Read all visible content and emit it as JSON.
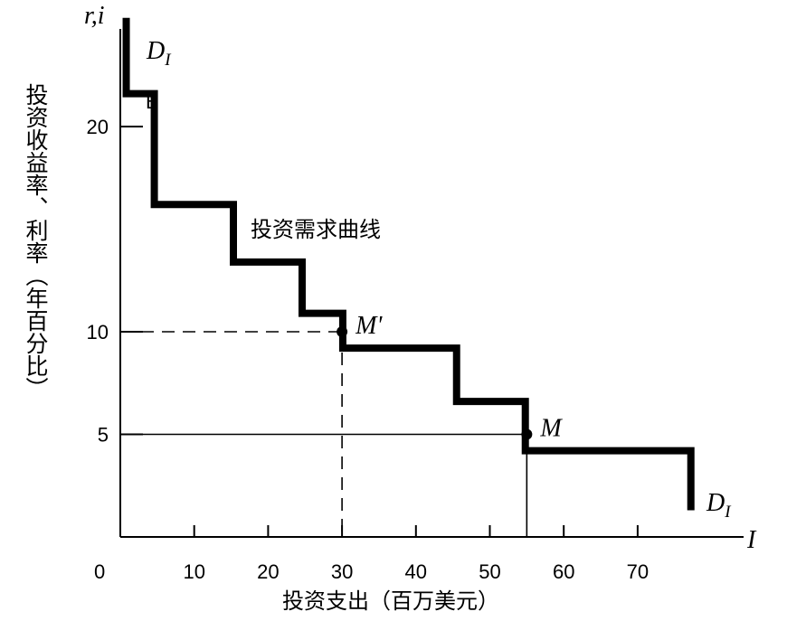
{
  "chart_data": {
    "type": "line",
    "title": "",
    "xlabel": "投资支出（百万美元）",
    "ylabel": "投资收益率、利率（年百分比）",
    "x_axis_symbol": "I",
    "y_axis_symbol": "r,i",
    "origin_label": "0",
    "xlim": [
      -2,
      90
    ],
    "ylim": [
      -0.5,
      26
    ],
    "x_ticks": [
      10,
      20,
      30,
      40,
      50,
      60,
      70
    ],
    "y_ticks": [
      5,
      10,
      20
    ],
    "series": [
      {
        "name": "",
        "label": "投资需求曲线",
        "step_points": [
          [
            0.8,
            25.3
          ],
          [
            0.8,
            21.6
          ],
          [
            4.6,
            21.6
          ],
          [
            4.6,
            16.2
          ],
          [
            15.3,
            16.2
          ],
          [
            15.3,
            13.4
          ],
          [
            24.6,
            13.4
          ],
          [
            24.6,
            10.9
          ],
          [
            30.1,
            10.9
          ],
          [
            30.1,
            9.2
          ],
          [
            45.5,
            9.2
          ],
          [
            45.5,
            6.6
          ],
          [
            54.8,
            6.6
          ],
          [
            54.8,
            4.2
          ],
          [
            77.2,
            4.2
          ],
          [
            77.2,
            1.3
          ]
        ]
      }
    ],
    "points": [
      {
        "label": "M'",
        "x": 30,
        "y": 10
      },
      {
        "label": "M",
        "x": 55,
        "y": 5
      }
    ],
    "annotations": {
      "curve_label_start": "D_I",
      "curve_label_end": "D_I",
      "b_label": "B",
      "curve_name": "投资需求曲线"
    },
    "reference_lines": [
      {
        "from_point": "M'",
        "style": "dashed"
      },
      {
        "from_point": "M",
        "style": "solid"
      }
    ],
    "grid": false,
    "legend": "none"
  }
}
